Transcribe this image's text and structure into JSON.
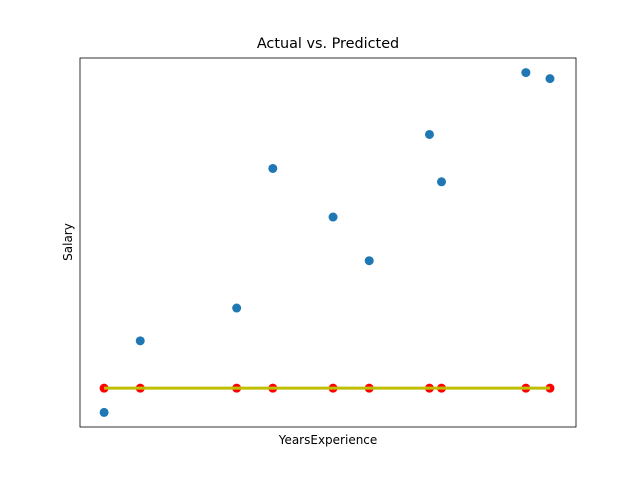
{
  "chart_data": {
    "type": "scatter",
    "title": "Actual vs. Predicted",
    "xlabel": "YearsExperience",
    "ylabel": "Salary",
    "xlim": [
      0.7,
      10.99
    ],
    "ylim": [
      -0.6,
      14.6
    ],
    "grid": false,
    "show_ticks": false,
    "colors": {
      "actual": "#1f77b4",
      "predicted_points": "#ff0000",
      "predicted_line": "#bfbf00",
      "axes": "#000000",
      "background": "#ffffff"
    },
    "series": [
      {
        "kind": "scatter",
        "color": "#1f77b4",
        "points": [
          {
            "x": 1.2,
            "y": 0.0
          },
          {
            "x": 1.95,
            "y": 2.95
          },
          {
            "x": 3.95,
            "y": 4.3
          },
          {
            "x": 4.7,
            "y": 10.05
          },
          {
            "x": 5.95,
            "y": 8.05
          },
          {
            "x": 6.7,
            "y": 6.25
          },
          {
            "x": 7.95,
            "y": 11.45
          },
          {
            "x": 8.2,
            "y": 9.5
          },
          {
            "x": 9.95,
            "y": 14.0
          },
          {
            "x": 10.45,
            "y": 13.75
          }
        ]
      },
      {
        "kind": "scatter",
        "color": "#ff0000",
        "points": [
          {
            "x": 1.2,
            "y": 1.0
          },
          {
            "x": 1.95,
            "y": 1.0
          },
          {
            "x": 3.95,
            "y": 1.0
          },
          {
            "x": 4.7,
            "y": 1.0
          },
          {
            "x": 5.95,
            "y": 1.0
          },
          {
            "x": 6.7,
            "y": 1.0
          },
          {
            "x": 7.95,
            "y": 1.0
          },
          {
            "x": 8.2,
            "y": 1.0
          },
          {
            "x": 9.95,
            "y": 1.0
          },
          {
            "x": 10.45,
            "y": 1.0
          }
        ]
      },
      {
        "kind": "line",
        "color": "#bfbf00",
        "points": [
          {
            "x": 1.2,
            "y": 1.0
          },
          {
            "x": 10.45,
            "y": 1.0
          }
        ]
      }
    ]
  }
}
